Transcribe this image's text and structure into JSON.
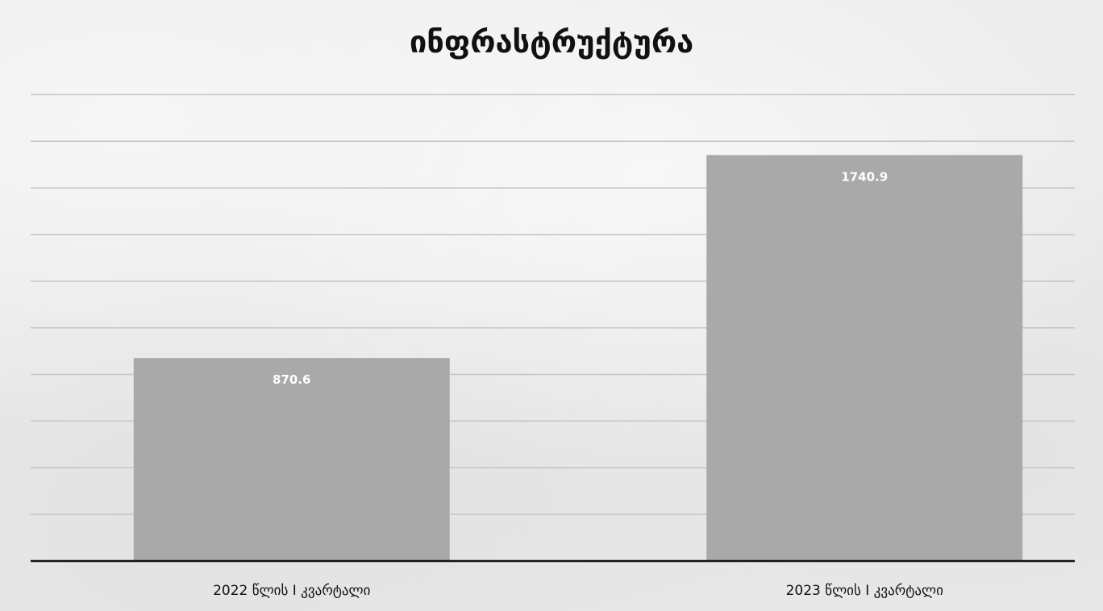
{
  "chart_data": {
    "type": "bar",
    "title": "ინფრასტრუქტურა",
    "categories": [
      "2022 წლის I კვარტალი",
      "2023 წლის I კვარტალი"
    ],
    "series": [
      {
        "values": [
          870.6,
          1740.9
        ],
        "data_labels": [
          "870.6",
          "1740.9"
        ]
      }
    ],
    "ylim": [
      0,
      2000
    ],
    "y_gridline_step": 200,
    "grid": true,
    "legend": "none",
    "xlabel": "",
    "ylabel": ""
  },
  "colors": {
    "bar": "#a9a9a9",
    "gridline": "#c4c4c4",
    "axis": "#111111",
    "data_label": "#ffffff"
  }
}
